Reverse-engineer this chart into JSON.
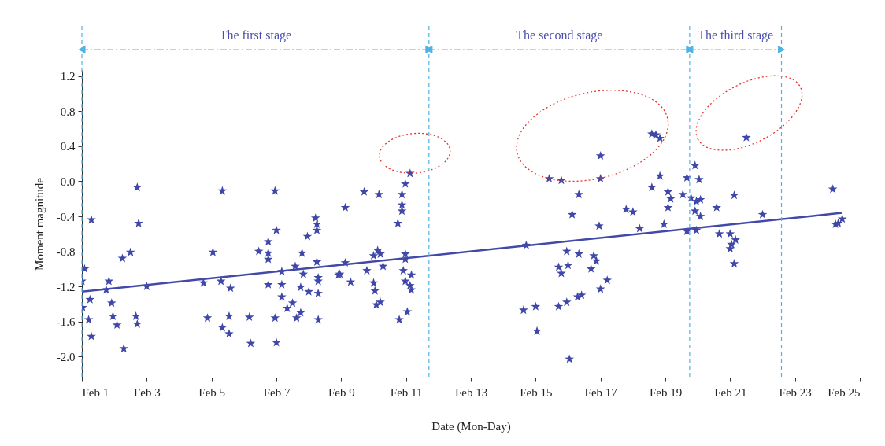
{
  "chart_data": {
    "type": "scatter",
    "xlabel": "Date (Mon-Day)",
    "ylabel": "Moment magnitude",
    "xlim": [
      "--02-01",
      "--02-25"
    ],
    "xticks": [
      {
        "value": "--02-01",
        "label": "Feb 1"
      },
      {
        "value": "--02-03",
        "label": "Feb 3"
      },
      {
        "value": "--02-05",
        "label": "Feb 5"
      },
      {
        "value": "--02-07",
        "label": "Feb 7"
      },
      {
        "value": "--02-09",
        "label": "Feb 9"
      },
      {
        "value": "--02-11",
        "label": "Feb 11"
      },
      {
        "value": "--02-13",
        "label": "Feb 13"
      },
      {
        "value": "--02-15",
        "label": "Feb 15"
      },
      {
        "value": "--02-17",
        "label": "Feb 17"
      },
      {
        "value": "--02-19",
        "label": "Feb 19"
      },
      {
        "value": "--02-21",
        "label": "Feb 21"
      },
      {
        "value": "--02-23",
        "label": "Feb 23"
      },
      {
        "value": "--02-25",
        "label": "Feb 25"
      }
    ],
    "ylim": [
      -2.24,
      1.27
    ],
    "yticks": [
      {
        "value": -2,
        "label": "-2.0"
      },
      {
        "value": -1.6,
        "label": "-1.6"
      },
      {
        "value": -1.2,
        "label": "-1.2"
      },
      {
        "value": -0.8,
        "label": "-0.8"
      },
      {
        "value": -0.4,
        "label": "-0.4"
      },
      {
        "value": 0,
        "label": "0.0"
      },
      {
        "value": 0.4,
        "label": "0.4"
      },
      {
        "value": 0.8,
        "label": "0.8"
      },
      {
        "value": 1.2,
        "label": "1.2"
      }
    ],
    "ref_lines": [
      {
        "axis": "x",
        "value": "--02-01",
        "color": "#4fb3e8",
        "line_style": "dashed"
      },
      {
        "axis": "x",
        "value": "--02-11T17:00",
        "color": "#4fb3e8",
        "line_style": "dashed"
      },
      {
        "axis": "x",
        "value": "--02-19T18:00",
        "color": "#4fb3e8",
        "line_style": "dashed"
      },
      {
        "axis": "x",
        "value": "--02-22T14:00",
        "color": "#4fb3e8",
        "line_style": "dashed"
      }
    ],
    "annotations": [
      "The first stage",
      "The second stage",
      "The third stage"
    ],
    "series": [
      {
        "color": "#3f48a8",
        "marker": "star",
        "x": [
          "--02-01T07:00",
          "--02-02T18:00",
          "--02-02T06:00",
          "--02-02T12:00",
          "--02-01T02:00",
          "--02-01T00:00",
          "--02-01T20:00",
          "--02-01T18:00",
          "--02-03T00:00",
          "--02-01T06:00",
          "--02-01T00:30",
          "--02-01T22:00",
          "--02-01T05:00",
          "--02-01T23:00",
          "--02-02T02:00",
          "--02-01T07:00",
          "--02-02T07:00",
          "--02-02T16:00",
          "--02-02T17:00",
          "--02-02T17:00",
          "--02-05T08:00",
          "--02-06T23:00",
          "--02-08T05:00",
          "--02-09T03:00",
          "--02-04T18:00",
          "--02-05T01:00",
          "--02-05T07:00",
          "--02-05T14:00",
          "--02-04T21:00",
          "--02-05T08:00",
          "--02-05T13:00",
          "--02-05T13:00",
          "--02-06T04:00",
          "--02-06T05:00",
          "--02-06T11:00",
          "--02-06T18:00",
          "--02-06T18:00",
          "--02-06T18:00",
          "--02-07T00:00",
          "--02-06T18:00",
          "--02-07T04:00",
          "--02-07T04:00",
          "--02-07T04:00",
          "--02-06T23:00",
          "--02-07T00:00",
          "--02-07T08:00",
          "--02-07T12:00",
          "--02-07T14:00",
          "--02-07T19:00",
          "--02-07T20:00",
          "--02-07T18:00",
          "--02-08T00:00",
          "--02-07T18:00",
          "--02-07T15:00",
          "--02-07T23:00",
          "--02-08T06:00",
          "--02-08T06:00",
          "--02-08T06:00",
          "--02-08T07:00",
          "--02-08T07:00",
          "--02-08T07:00",
          "--02-08T07:00",
          "--02-08T22:00",
          "--02-09T03:00",
          "--02-08T23:00",
          "--02-09T07:00",
          "--02-09T17:00",
          "--02-10T04:00",
          "--02-10T21:00",
          "--02-10T23:30",
          "--02-11T03:00",
          "--02-10T21:00",
          "--02-10T21:00",
          "--02-10T18:00",
          "--02-09T19:00",
          "--02-10T00:00",
          "--02-10T01:00",
          "--02-10T02:00",
          "--02-10T05:00",
          "--02-10T00:00",
          "--02-10T03:00",
          "--02-10T05:00",
          "--02-10T07:00",
          "--02-10T23:30",
          "--02-10T23:30",
          "--02-10T22:00",
          "--02-11T04:00",
          "--02-10T23:30",
          "--02-11T03:00",
          "--02-11T04:00",
          "--02-11T01:00",
          "--02-10T19:00",
          "--02-14T17:00",
          "--02-14T15:00",
          "--02-15T00:00",
          "--02-15T01:00",
          "--02-16T01:00",
          "--02-15T23:00",
          "--02-16T08:00",
          "--02-15T17:00",
          "--02-15T19:00",
          "--02-16T00:00",
          "--02-16T19:00",
          "--02-16T21:00",
          "--02-16T17:00",
          "--02-15T17:00",
          "--02-15T23:00",
          "--02-16T07:00",
          "--02-16T10:00",
          "--02-17T00:00",
          "--02-17T05:00",
          "--02-16T23:00",
          "--02-16T03:00",
          "--02-16T08:00",
          "--02-15T10:00",
          "--02-15T19:00",
          "--02-17T00:00",
          "--02-17T00:00",
          "--02-18T14:00",
          "--02-18T17:00",
          "--02-18T20:00",
          "--02-19T22:00",
          "--02-18T20:00",
          "--02-19T16:00",
          "--02-20T01:00",
          "--02-18T14:00",
          "--02-19T02:00",
          "--02-19T04:00",
          "--02-19T02:00",
          "--02-19T13:00",
          "--02-19T19:00",
          "--02-19T23:00",
          "--02-20T02:00",
          "--02-19T22:00",
          "--02-20T02:00",
          "--02-20T14:00",
          "--02-21T03:00",
          "--02-21T12:00",
          "--02-22T00:00",
          "--02-24T04:00",
          "--02-17T19:00",
          "--02-18T00:00",
          "--02-18T05:00",
          "--02-18T23:00",
          "--02-19T16:00",
          "--02-19T23:00",
          "--02-20T16:00",
          "--02-21T00:00",
          "--02-21T04:00",
          "--02-21T01:00",
          "--02-21T00:00",
          "--02-21T03:00",
          "--02-24T06:00",
          "--02-24T08:00",
          "--02-24T11:00"
        ],
        "values": [
          -0.44,
          -0.48,
          -0.88,
          -0.81,
          -1.0,
          -1.14,
          -1.14,
          -1.24,
          -1.2,
          -1.35,
          -1.44,
          -1.39,
          -1.58,
          -1.54,
          -1.64,
          -1.77,
          -1.91,
          -1.54,
          -1.63,
          -0.07,
          -0.11,
          -0.11,
          -0.42,
          -0.3,
          -1.16,
          -0.81,
          -1.14,
          -1.22,
          -1.56,
          -1.67,
          -1.74,
          -1.54,
          -1.55,
          -1.85,
          -0.8,
          -0.69,
          -0.82,
          -0.89,
          -0.56,
          -1.18,
          -1.03,
          -1.18,
          -1.32,
          -1.56,
          -1.84,
          -1.45,
          -1.39,
          -0.97,
          -0.82,
          -1.06,
          -1.21,
          -1.26,
          -1.5,
          -1.56,
          -0.63,
          -0.49,
          -0.56,
          -0.92,
          -1.1,
          -1.14,
          -1.28,
          -1.58,
          -1.07,
          -0.93,
          -1.06,
          -1.15,
          -0.12,
          -0.15,
          -0.15,
          -0.03,
          0.09,
          -0.27,
          -0.34,
          -0.48,
          -1.02,
          -1.16,
          -1.25,
          -1.41,
          -1.38,
          -0.85,
          -0.79,
          -0.83,
          -0.97,
          -0.83,
          -0.89,
          -1.02,
          -1.07,
          -1.14,
          -1.19,
          -1.24,
          -1.49,
          -1.58,
          -0.73,
          -1.47,
          -1.43,
          -1.71,
          -2.03,
          -0.8,
          -0.83,
          -0.98,
          -1.05,
          -0.96,
          -0.85,
          -0.91,
          -1.0,
          -1.43,
          -1.38,
          -1.32,
          -1.3,
          -1.23,
          -1.13,
          -0.51,
          -0.38,
          -0.15,
          0.03,
          0.01,
          0.03,
          0.29,
          0.54,
          0.53,
          0.49,
          0.18,
          0.06,
          0.04,
          0.02,
          -0.07,
          -0.12,
          -0.2,
          -0.3,
          -0.15,
          -0.19,
          -0.23,
          -0.21,
          -0.34,
          -0.4,
          -0.3,
          -0.16,
          0.5,
          -0.38,
          -0.09,
          -0.32,
          -0.35,
          -0.54,
          -0.49,
          -0.57,
          -0.56,
          -0.6,
          -0.6,
          -0.67,
          -0.72,
          -0.77,
          -0.94,
          -0.49,
          -0.48,
          -0.43
        ]
      },
      {
        "type": "line",
        "color": "#4249a8",
        "x": [
          "--02-01",
          "--02-24T11:00"
        ],
        "values": [
          -1.26,
          -0.36
        ]
      }
    ]
  }
}
